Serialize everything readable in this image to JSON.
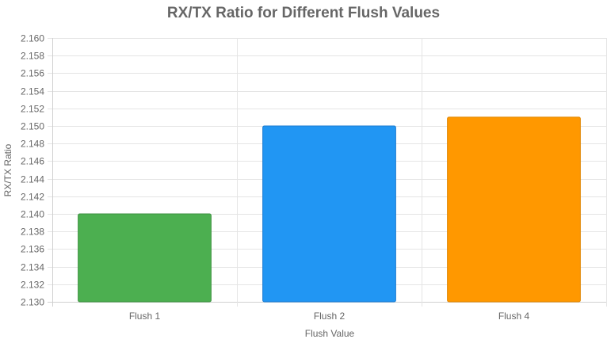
{
  "chart_data": {
    "type": "bar",
    "title": "RX/TX Ratio for Different Flush Values",
    "xlabel": "Flush Value",
    "ylabel": "RX/TX Ratio",
    "categories": [
      "Flush 1",
      "Flush 2",
      "Flush 4"
    ],
    "values": [
      2.14,
      2.15,
      2.151
    ],
    "colors": [
      "#4caf50",
      "#2196f3",
      "#ff9800"
    ],
    "border_colors": [
      "#3d9140",
      "#1a7bd0",
      "#e08600"
    ],
    "ylim": [
      2.13,
      2.16
    ],
    "ytick_step": 0.002,
    "ytick_decimals": 3,
    "grid": true,
    "legend": "none"
  }
}
